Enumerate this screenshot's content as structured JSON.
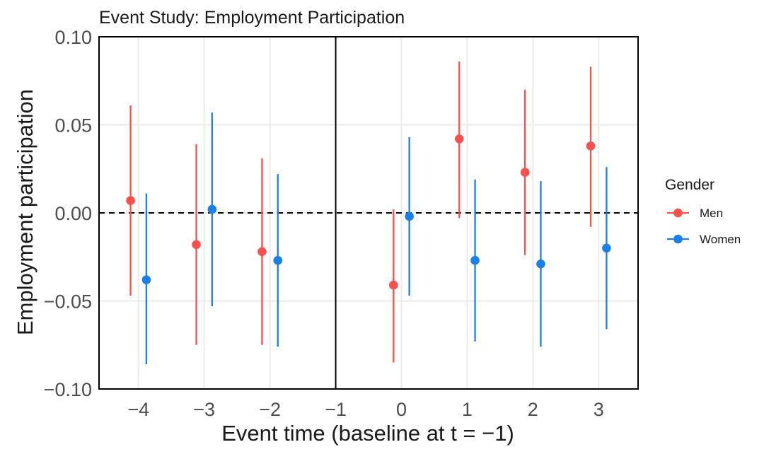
{
  "chart_data": {
    "type": "scatter",
    "title": "Event Study: Employment Participation",
    "xlabel": "Event time (baseline at t = −1)",
    "ylabel": "Employment participation",
    "x_ticks": [
      -4,
      -3,
      -2,
      -1,
      0,
      1,
      2,
      3
    ],
    "x_tick_labels": [
      "−4",
      "−3",
      "−2",
      "−1",
      "0",
      "1",
      "2",
      "3"
    ],
    "xlim": [
      -4.6,
      3.6
    ],
    "y_ticks": [
      -0.1,
      -0.05,
      0.0,
      0.05,
      0.1
    ],
    "y_tick_labels": [
      "−0.10",
      "−0.05",
      "0.00",
      "0.05",
      "0.10"
    ],
    "ylim": [
      -0.1,
      0.1
    ],
    "reference_hline": 0,
    "reference_vline": -1,
    "grid": true,
    "legend": {
      "title": "Gender",
      "position": "right"
    },
    "series": [
      {
        "name": "Men",
        "color": "#F8514D",
        "x": [
          -4,
          -3,
          -2,
          0,
          1,
          2,
          3
        ],
        "y": [
          0.007,
          -0.018,
          -0.022,
          -0.041,
          0.042,
          0.023,
          0.038
        ],
        "ci_low": [
          -0.047,
          -0.075,
          -0.075,
          -0.085,
          -0.003,
          -0.024,
          -0.008
        ],
        "ci_high": [
          0.061,
          0.039,
          0.031,
          0.002,
          0.086,
          0.07,
          0.083
        ]
      },
      {
        "name": "Women",
        "color": "#1B7FE8",
        "x": [
          -4,
          -3,
          -2,
          0,
          1,
          2,
          3
        ],
        "y": [
          -0.038,
          0.002,
          -0.027,
          -0.002,
          -0.027,
          -0.029,
          -0.02
        ],
        "ci_low": [
          -0.086,
          -0.053,
          -0.076,
          -0.047,
          -0.073,
          -0.076,
          -0.066
        ],
        "ci_high": [
          0.011,
          0.057,
          0.022,
          0.043,
          0.019,
          0.018,
          0.026
        ]
      }
    ]
  }
}
